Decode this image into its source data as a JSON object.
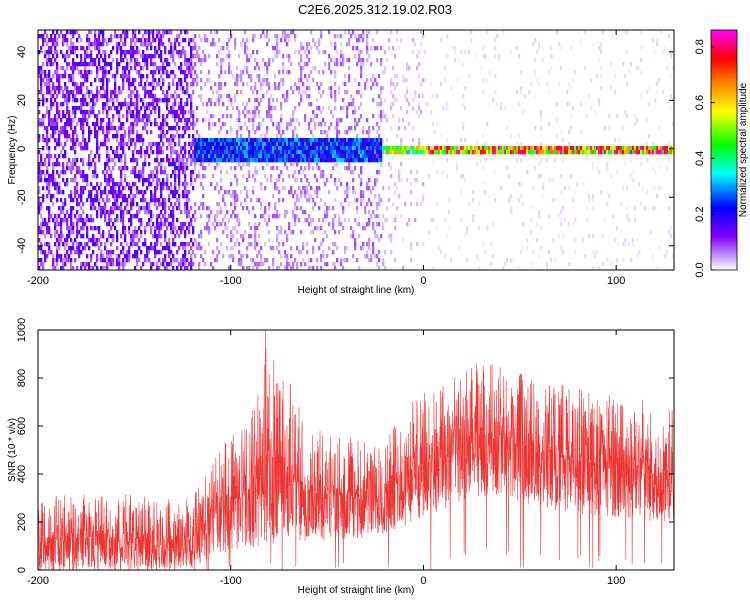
{
  "title": "C2E6.2025.312.19.02.R03",
  "chart_data": [
    {
      "type": "heatmap",
      "xlabel": "Height of straight line (km)",
      "ylabel": "Frequency (Hz)",
      "xlim": [
        -200,
        130
      ],
      "ylim": [
        -50,
        49
      ],
      "xticks": [
        "-200",
        "-100",
        "0",
        "100"
      ],
      "yticks": [
        "-40",
        "-20",
        "0",
        "20",
        "40"
      ],
      "colorbar": {
        "label": "Normalized spectral amplitude",
        "range": [
          0.0,
          0.86
        ],
        "ticks": [
          "0.0",
          "0.2",
          "0.4",
          "0.6",
          "0.8"
        ],
        "colors": [
          "#ffffff",
          "#8000ff",
          "#0000ff",
          "#00ffff",
          "#00ff00",
          "#ffff00",
          "#ff8000",
          "#ff0000",
          "#ff00ff"
        ]
      },
      "regions": [
        {
          "x": [
            -200,
            -120
          ],
          "background_level": 0.08,
          "signal_level": 0.0
        },
        {
          "x": [
            -120,
            -22
          ],
          "background_level": 0.04,
          "signal_level": 0.3
        },
        {
          "x": [
            -22,
            0
          ],
          "background_level": 0.02,
          "signal_level": 0.6
        },
        {
          "x": [
            0,
            130
          ],
          "background_level": 0.01,
          "signal_level": 0.8
        }
      ],
      "signal_frequency": 0
    },
    {
      "type": "line",
      "xlabel": "Height of straight line (km)",
      "ylabel": "SNR (10 * v/v)",
      "xlim": [
        -200,
        130
      ],
      "ylim": [
        0,
        1000
      ],
      "xticks": [
        "-200",
        "-100",
        "0",
        "100"
      ],
      "yticks": [
        "0",
        "200",
        "400",
        "600",
        "800",
        "1000"
      ],
      "color": "#ee3333",
      "envelope": {
        "x": [
          -200,
          -160,
          -130,
          -120,
          -115,
          -110,
          -100,
          -90,
          -85,
          -80,
          -60,
          -40,
          -25,
          -20,
          -15,
          -10,
          0,
          10,
          20,
          30,
          40,
          50,
          60,
          80,
          100,
          120,
          130
        ],
        "low": [
          0,
          0,
          0,
          0,
          30,
          50,
          80,
          90,
          100,
          110,
          120,
          130,
          130,
          140,
          150,
          180,
          220,
          250,
          280,
          300,
          300,
          280,
          260,
          230,
          220,
          200,
          200
        ],
        "high": [
          310,
          320,
          300,
          320,
          380,
          480,
          560,
          620,
          780,
          1000,
          600,
          560,
          520,
          560,
          620,
          700,
          740,
          780,
          820,
          880,
          860,
          820,
          800,
          760,
          740,
          700,
          680
        ]
      }
    }
  ]
}
